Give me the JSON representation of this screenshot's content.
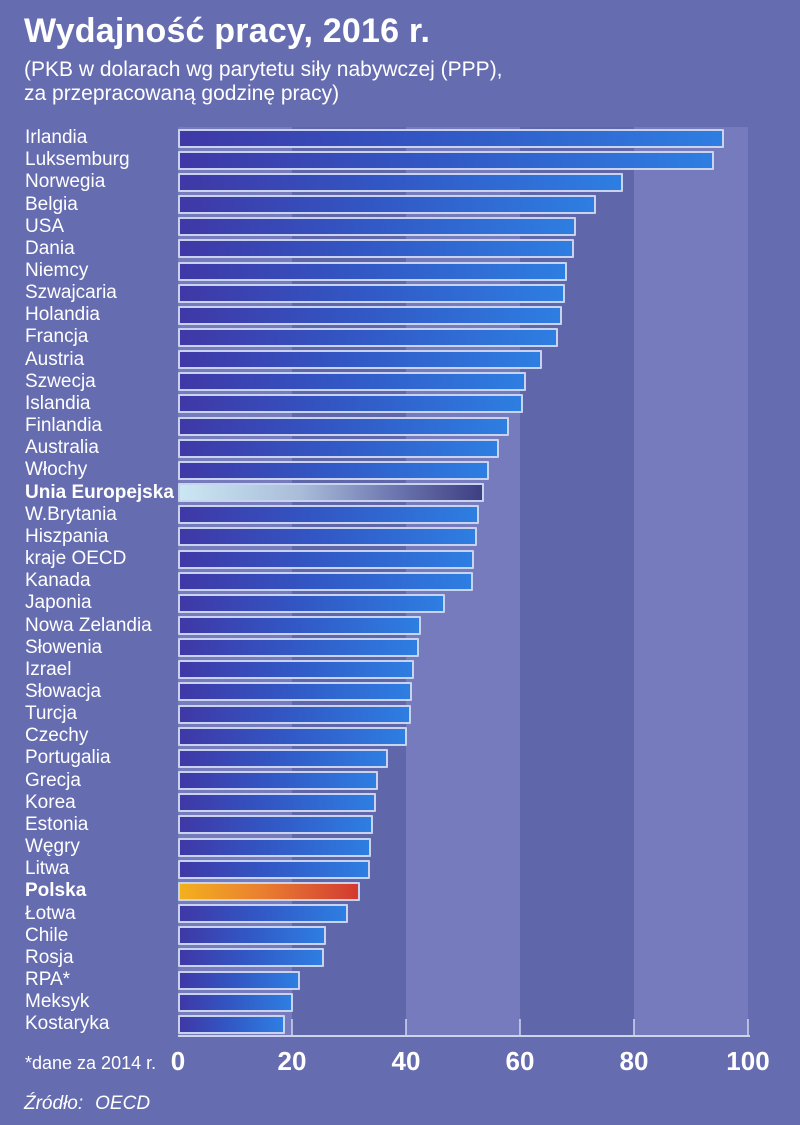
{
  "title": "Wydajność pracy, 2016 r.",
  "subtitle": {
    "line1": "(PKB w dolarach wg parytetu siły nabywczej (PPP),",
    "line2": "za przepracowaną godzinę pracy)"
  },
  "footnote": "*dane za 2014 r.",
  "source": {
    "label": "Źródło:",
    "value": "OECD"
  },
  "chart_data": {
    "type": "bar",
    "orientation": "horizontal",
    "title": "Wydajność pracy, 2016 r.",
    "xlabel": "",
    "ylabel": "",
    "xlim": [
      0,
      100
    ],
    "x_ticks": [
      "0",
      "20",
      "40",
      "60",
      "80",
      "100"
    ],
    "grid": "alternating vertical bands every 20 units",
    "legend": "none",
    "categories": [
      "Irlandia",
      "Luksemburg",
      "Norwegia",
      "Belgia",
      "USA",
      "Dania",
      "Niemcy",
      "Szwajcaria",
      "Holandia",
      "Francja",
      "Austria",
      "Szwecja",
      "Islandia",
      "Finlandia",
      "Australia",
      "Włochy",
      "Unia Europejska",
      "W.Brytania",
      "Hiszpania",
      "kraje OECD",
      "Kanada",
      "Japonia",
      "Nowa Zelandia",
      "Słowenia",
      "Izrael",
      "Słowacja",
      "Turcja",
      "Czechy",
      "Portugalia",
      "Grecja",
      "Korea",
      "Estonia",
      "Węgry",
      "Litwa",
      "Polska",
      "Łotwa",
      "Chile",
      "Rosja",
      "RPA*",
      "Meksyk",
      "Kostaryka"
    ],
    "values": [
      95.8,
      94.0,
      78.1,
      73.3,
      69.9,
      69.4,
      68.2,
      67.9,
      67.3,
      66.7,
      63.9,
      61.1,
      60.5,
      58.1,
      56.4,
      54.6,
      53.7,
      52.8,
      52.4,
      52.0,
      51.7,
      46.9,
      42.6,
      42.3,
      41.4,
      41.1,
      40.8,
      40.2,
      36.8,
      35.1,
      34.7,
      34.2,
      33.9,
      33.6,
      31.9,
      29.9,
      26.0,
      25.7,
      21.4,
      20.1,
      18.8
    ],
    "bold_categories": [
      "Unia Europejska",
      "Polska"
    ],
    "highlight_bars": {
      "Unia Europejska": "eu",
      "Polska": "pl"
    }
  },
  "colors": {
    "page_background": "#666cb0",
    "band_light": "#757bbc",
    "band_dark": "#6066aa",
    "bar_gradient_start": "#3f38a6",
    "bar_gradient_end": "#2e7ee2",
    "bar_border": "#c9d3ee",
    "eu_bar_gradient_start": "#cbe7f3",
    "eu_bar_gradient_end": "#3d3f83",
    "poland_bar_gradient_start": "#f3b01d",
    "poland_bar_gradient_end": "#d4392e",
    "text": "#ffffff"
  }
}
